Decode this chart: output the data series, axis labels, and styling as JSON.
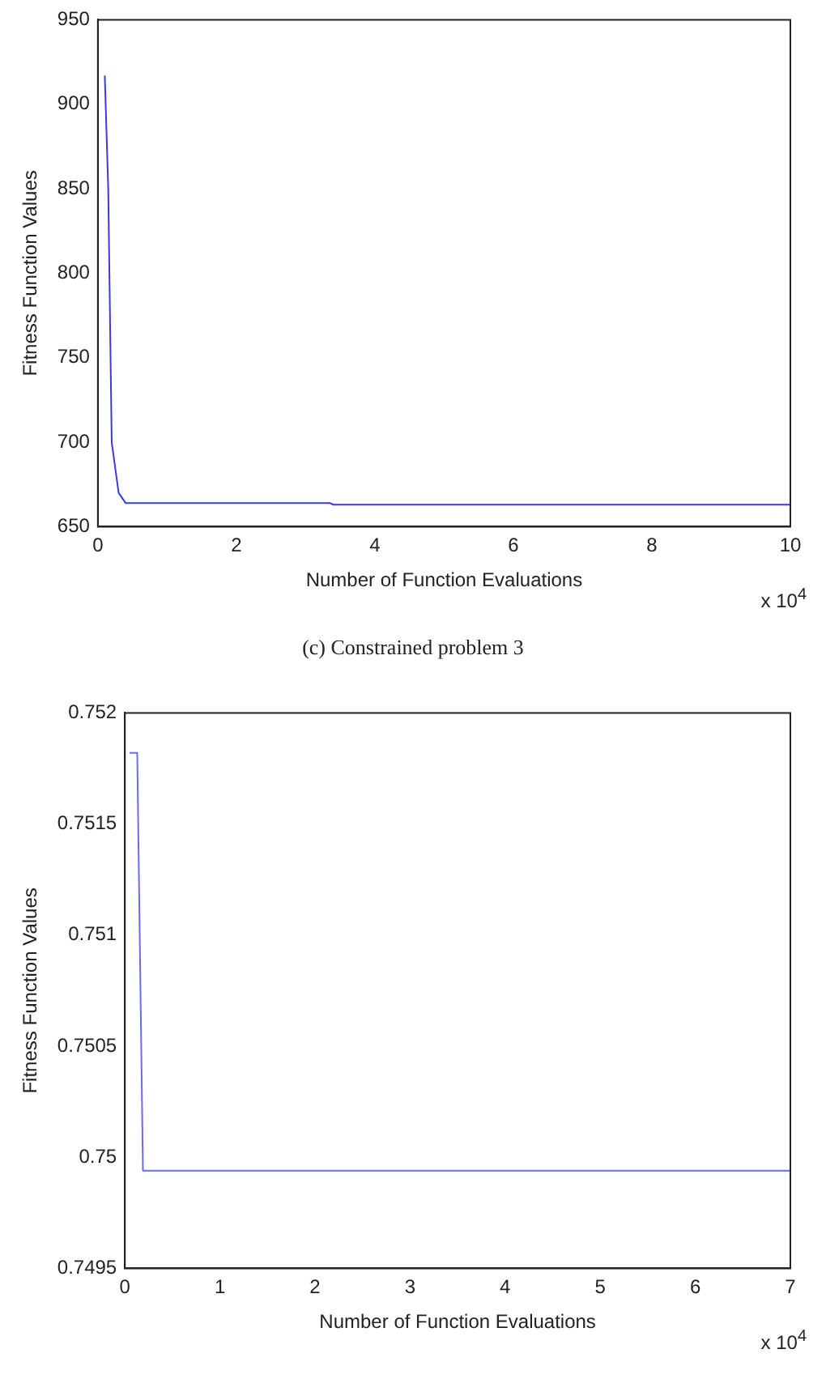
{
  "chart_data": [
    {
      "type": "line",
      "xlabel": "Number of Function Evaluations",
      "ylabel": "Fitness Function Values",
      "annotations": [
        "x 10$^{4}$",
        "(c) Constrained problem 3"
      ],
      "series": [
        {
          "color": "#3a3ae0",
          "x": [
            0.1,
            0.15,
            0.2,
            0.3,
            0.4,
            3.35,
            3.4,
            10
          ],
          "values": [
            917,
            850,
            700,
            670,
            664,
            664,
            663,
            663
          ]
        }
      ],
      "xlim": [
        0,
        10
      ],
      "xticks": [
        0,
        2,
        4,
        6,
        8,
        10
      ],
      "ylim": [
        650,
        950
      ],
      "yticks": [
        650,
        700,
        750,
        800,
        850,
        900,
        950
      ],
      "grid": false,
      "legend": false,
      "marker": "none",
      "line_style": "solid"
    },
    {
      "type": "line",
      "xlabel": "Number of Function Evaluations",
      "ylabel": "Fitness Function Values",
      "annotations": [
        "x 10$^{4}$"
      ],
      "series": [
        {
          "color": "#6a6af0",
          "x": [
            0.05,
            0.13,
            0.19,
            7
          ],
          "values": [
            0.75182,
            0.75182,
            0.74994,
            0.74994
          ]
        }
      ],
      "xlim": [
        0,
        7
      ],
      "xticks": [
        0,
        1,
        2,
        3,
        4,
        5,
        6,
        7
      ],
      "ylim": [
        0.7495,
        0.752
      ],
      "yticks": [
        0.7495,
        0.75,
        0.7505,
        0.751,
        0.7515,
        0.752
      ],
      "grid": false,
      "legend": false,
      "marker": "none",
      "line_style": "solid"
    }
  ]
}
